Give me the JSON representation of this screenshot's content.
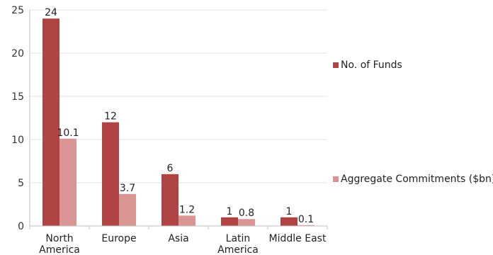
{
  "chart_data": {
    "type": "bar",
    "categories": [
      [
        "North",
        "America"
      ],
      [
        "Europe"
      ],
      [
        "Asia"
      ],
      [
        "Latin",
        "America"
      ],
      [
        "Middle East"
      ]
    ],
    "series": [
      {
        "name": "No. of Funds",
        "values": [
          24,
          12,
          6,
          1,
          1
        ],
        "color": "#b04444",
        "labels": [
          "24",
          "12",
          "6",
          "1",
          "1"
        ]
      },
      {
        "name": "Aggregate Commitments ($bn)",
        "values": [
          10.1,
          3.7,
          1.2,
          0.8,
          0.1
        ],
        "color": "#d99594",
        "labels": [
          "10.1",
          "3.7",
          "1.2",
          "0.8",
          "0.1"
        ]
      }
    ],
    "ylim": [
      0,
      25
    ],
    "yticks": [
      "0",
      "5",
      "10",
      "15",
      "20",
      "25"
    ],
    "grid": true,
    "legend_position": "right"
  }
}
